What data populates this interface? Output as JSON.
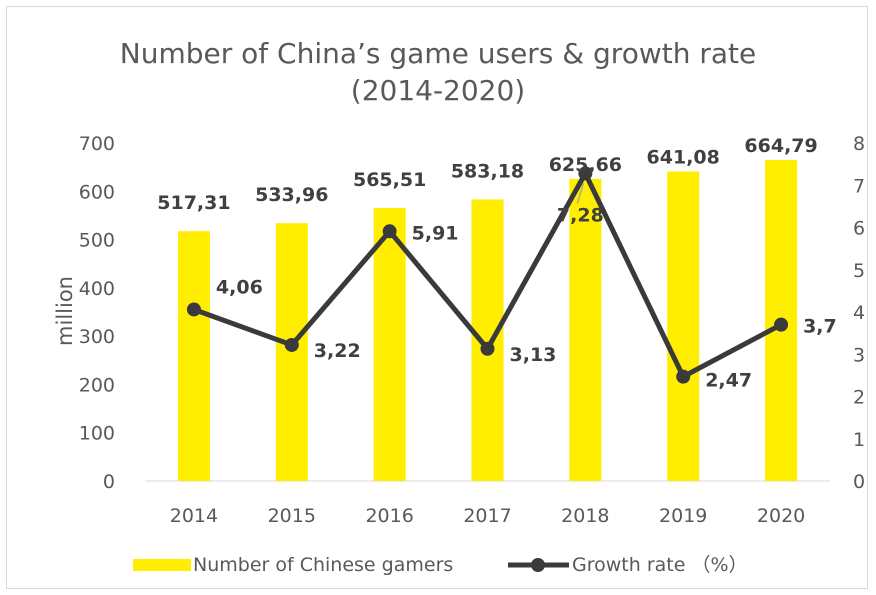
{
  "chart_data": {
    "type": "bar",
    "title_line1": "Number of China’s game users & growth rate",
    "title_line2": "(2014-2020)",
    "ylabel": "million",
    "categories": [
      "2014",
      "2015",
      "2016",
      "2017",
      "2018",
      "2019",
      "2020"
    ],
    "series": [
      {
        "name": "Number of Chinese gamers",
        "type": "bar",
        "axis": "left",
        "values": [
          517.31,
          533.96,
          565.51,
          583.18,
          625.66,
          641.08,
          664.79
        ],
        "labels": [
          "517,31",
          "533,96",
          "565,51",
          "583,18",
          "625,66",
          "641,08",
          "664,79"
        ],
        "color": "#ffee00"
      },
      {
        "name": "Growth rate （%）",
        "type": "line",
        "axis": "right",
        "values": [
          4.06,
          3.22,
          5.91,
          3.13,
          7.28,
          2.47,
          3.7
        ],
        "labels": [
          "4,06",
          "3,22",
          "5,91",
          "3,13",
          "7,28",
          "2,47",
          "3,7"
        ],
        "color": "#3a3a3a"
      }
    ],
    "y_left": {
      "min": 0,
      "max": 700,
      "ticks": [
        0,
        100,
        200,
        300,
        400,
        500,
        600,
        700
      ]
    },
    "y_right": {
      "min": 0,
      "max": 8,
      "ticks": [
        0,
        1,
        2,
        3,
        4,
        5,
        6,
        7,
        8
      ]
    },
    "grid": false,
    "legend_position": "bottom",
    "colors": {
      "text": "#595959",
      "axis": "#595959",
      "label": "#404040",
      "leader": "#a6a6a6"
    }
  }
}
